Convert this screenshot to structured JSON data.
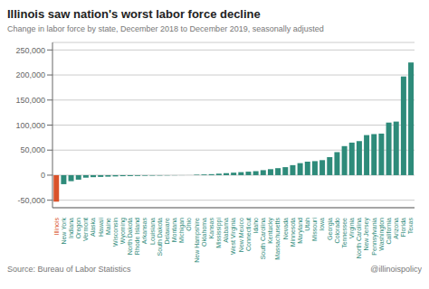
{
  "chart_data": {
    "type": "bar",
    "title": "Illinois saw nation's worst labor force decline",
    "subtitle": "Change in labor force by state, December 2018 to December 2019, seasonally adjusted",
    "annotations": [
      "Source: Bureau of Labor Statistics",
      "@illinoispolicy"
    ],
    "categories": [
      "Illinois",
      "New York",
      "Indiana",
      "Oregon",
      "Vermont",
      "Alaska",
      "Hawaii",
      "Maine",
      "Wisconsin",
      "Wyoming",
      "North Dakota",
      "Rhode Island",
      "Arkansas",
      "Louisiana",
      "South Dakota",
      "Delaware",
      "Montana",
      "Michigan",
      "Ohio",
      "New Hampshire",
      "Oklahoma",
      "Kansas",
      "Mississippi",
      "Alabama",
      "West Virginia",
      "New Mexico",
      "Connecticut",
      "Idaho",
      "South Carolina",
      "Kentucky",
      "Massachusetts",
      "Nevada",
      "Minnesota",
      "Maryland",
      "Utah",
      "Missouri",
      "Iowa",
      "Georgia",
      "Colorado",
      "Tennessee",
      "Virginia",
      "North Carolina",
      "New Jersey",
      "Pennsylvania",
      "Washington",
      "California",
      "Arizona",
      "Florida",
      "Texas"
    ],
    "values": [
      -52900,
      -18000,
      -12000,
      -9000,
      -5000,
      -4000,
      -3500,
      -3000,
      -2500,
      -2000,
      -1800,
      -1500,
      -1200,
      -1000,
      -800,
      -600,
      -400,
      -200,
      -100,
      1000,
      1500,
      2000,
      3000,
      4000,
      5000,
      6000,
      7000,
      8000,
      10000,
      12000,
      14000,
      16000,
      20000,
      24000,
      27000,
      28000,
      30000,
      36000,
      46000,
      58000,
      65000,
      68000,
      80000,
      82000,
      83000,
      105000,
      107000,
      197000,
      225000
    ],
    "colors": [
      "#d9522b",
      "#2e8b7a",
      "#2e8b7a",
      "#2e8b7a",
      "#2e8b7a",
      "#2e8b7a",
      "#2e8b7a",
      "#2e8b7a",
      "#2e8b7a",
      "#2e8b7a",
      "#2e8b7a",
      "#2e8b7a",
      "#2e8b7a",
      "#2e8b7a",
      "#2e8b7a",
      "#2e8b7a",
      "#2e8b7a",
      "#2e8b7a",
      "#2e8b7a",
      "#2e8b7a",
      "#2e8b7a",
      "#2e8b7a",
      "#2e8b7a",
      "#2e8b7a",
      "#2e8b7a",
      "#2e8b7a",
      "#2e8b7a",
      "#2e8b7a",
      "#2e8b7a",
      "#2e8b7a",
      "#2e8b7a",
      "#2e8b7a",
      "#2e8b7a",
      "#2e8b7a",
      "#2e8b7a",
      "#2e8b7a",
      "#2e8b7a",
      "#2e8b7a",
      "#2e8b7a",
      "#2e8b7a",
      "#2e8b7a",
      "#2e8b7a",
      "#2e8b7a",
      "#2e8b7a",
      "#2e8b7a",
      "#2e8b7a",
      "#2e8b7a",
      "#2e8b7a",
      "#2e8b7a"
    ],
    "ylim": [
      -65000,
      265000
    ],
    "yticks": [
      {
        "value": -50000,
        "label": "-50,000"
      },
      0,
      {
        "value": 50000,
        "label": "50,000"
      },
      {
        "value": 100000,
        "label": "100,000"
      },
      {
        "value": 150000,
        "label": "150,000"
      },
      {
        "value": 200000,
        "label": "200,000"
      },
      {
        "value": 250000,
        "label": "250,000"
      }
    ],
    "grid": true
  }
}
